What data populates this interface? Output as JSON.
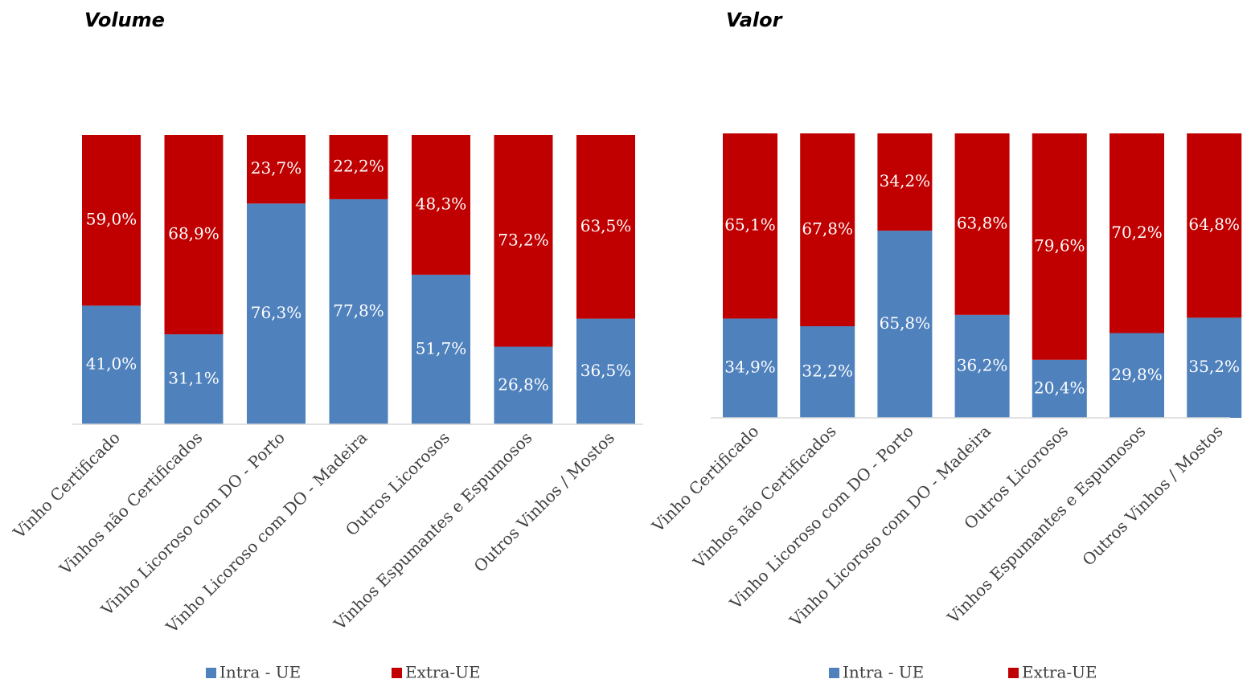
{
  "chart_data": [
    {
      "type": "bar",
      "stacked": true,
      "title": "Volume",
      "categories": [
        "Vinho Certificado",
        "Vinhos não Certificados",
        "Vinho Licoroso com DO - Porto",
        "Vinho Licoroso com DO - Madeira",
        "Outros Licorosos",
        "Vinhos Espumantes e Espumosos",
        "Outros Vinhos / Mostos"
      ],
      "ylim": [
        0,
        100
      ],
      "series": [
        {
          "name": "Intra - UE",
          "color": "#4f81bd",
          "values": [
            41.0,
            31.1,
            76.3,
            77.8,
            51.7,
            26.8,
            36.5
          ],
          "value_labels": [
            "41,0%",
            "31,1%",
            "76,3%",
            "77,8%",
            "51,7%",
            "26,8%",
            "36,5%"
          ]
        },
        {
          "name": "Extra-UE",
          "color": "#c00000",
          "values": [
            59.0,
            68.9,
            23.7,
            22.2,
            48.3,
            73.2,
            63.5
          ],
          "value_labels": [
            "59,0%",
            "68,9%",
            "23,7%",
            "22,2%",
            "48,3%",
            "73,2%",
            "63,5%"
          ]
        }
      ]
    },
    {
      "type": "bar",
      "stacked": true,
      "title": "Valor",
      "categories": [
        "Vinho Certificado",
        "Vinhos não Certificados",
        "Vinho Licoroso com DO - Porto",
        "Vinho Licoroso com DO - Madeira",
        "Outros Licorosos",
        "Vinhos Espumantes e Espumosos",
        "Outros Vinhos / Mostos"
      ],
      "ylim": [
        0,
        100
      ],
      "series": [
        {
          "name": "Intra - UE",
          "color": "#4f81bd",
          "values": [
            34.9,
            32.2,
            65.8,
            36.2,
            20.4,
            29.8,
            35.2
          ],
          "value_labels": [
            "34,9%",
            "32,2%",
            "65,8%",
            "36,2%",
            "20,4%",
            "29,8%",
            "35,2%"
          ]
        },
        {
          "name": "Extra-UE",
          "color": "#c00000",
          "values": [
            65.1,
            67.8,
            34.2,
            63.8,
            79.6,
            70.2,
            64.8
          ],
          "value_labels": [
            "65,1%",
            "67,8%",
            "34,2%",
            "63,8%",
            "79,6%",
            "70,2%",
            "64,8%"
          ]
        }
      ]
    }
  ]
}
